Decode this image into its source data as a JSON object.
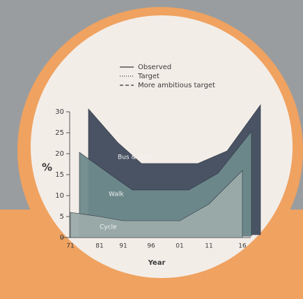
{
  "chart_data": {
    "type": "area",
    "legend": [
      {
        "label": "Observed",
        "style": "solid"
      },
      {
        "label": "Target",
        "style": "dotted"
      },
      {
        "label": "More ambitious target",
        "style": "dashed"
      }
    ],
    "categories": [
      "71",
      "81",
      "91",
      "96",
      "01",
      "11",
      "16"
    ],
    "series": [
      {
        "name": "Bus & train",
        "color": "#3f4b5d",
        "values": [
          30,
          22,
          17,
          17,
          17,
          20,
          31
        ]
      },
      {
        "name": "Walk",
        "color": "#6f8a8c",
        "values": [
          20,
          15,
          11,
          11,
          11,
          15,
          25
        ]
      },
      {
        "name": "Cycle",
        "color": "#9babaa",
        "values": [
          6,
          5,
          4,
          4,
          4,
          8,
          16
        ]
      }
    ],
    "ylim": [
      0,
      30
    ],
    "yticks": [
      0,
      5,
      10,
      15,
      20,
      25,
      30
    ],
    "y_label": "%",
    "x_label": "Year"
  }
}
